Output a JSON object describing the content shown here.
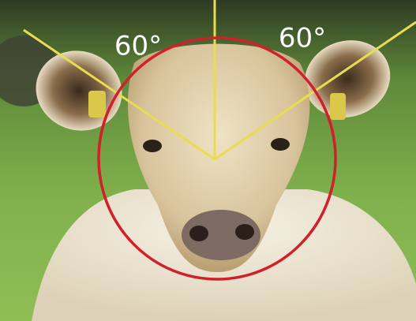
{
  "annotations": [
    {
      "text": "60°"
    },
    {
      "text": "60°"
    }
  ]
}
